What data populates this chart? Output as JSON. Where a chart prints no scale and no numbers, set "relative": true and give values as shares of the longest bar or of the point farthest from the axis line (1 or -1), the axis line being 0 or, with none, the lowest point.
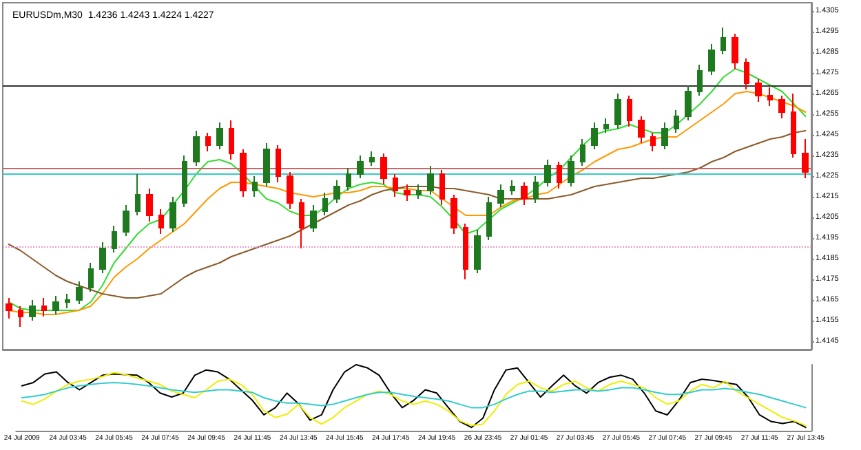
{
  "chart_data": [
    {
      "type": "candlestick",
      "title": "EURUSDm,M30  1.4236 1.4243 1.4224 1.4227",
      "tick_labels": "y",
      "categories": [
        null,
        null,
        null,
        null,
        null,
        null,
        null,
        null,
        null,
        null,
        null,
        null,
        null,
        null,
        null,
        null,
        null,
        null,
        null,
        null,
        null,
        null,
        null,
        null,
        null,
        null,
        null,
        null,
        null,
        null,
        null,
        null,
        null,
        null,
        null,
        null,
        null,
        null,
        null,
        null,
        null,
        null,
        null,
        null,
        null,
        null,
        null,
        null,
        null,
        null,
        null,
        null,
        null,
        null,
        null,
        null,
        null,
        null,
        null,
        null,
        null,
        null,
        null,
        null,
        null,
        null,
        null,
        null,
        null
      ],
      "ohlc": [
        [
          1.4163,
          1.4166,
          1.4156,
          1.416
        ],
        [
          1.416,
          1.4162,
          1.4152,
          1.4157
        ],
        [
          1.4157,
          1.4165,
          1.4155,
          1.4162
        ],
        [
          1.4162,
          1.4166,
          1.4157,
          1.416
        ],
        [
          1.416,
          1.4167,
          1.4158,
          1.4164
        ],
        [
          1.4164,
          1.4168,
          1.4161,
          1.4165
        ],
        [
          1.4165,
          1.4174,
          1.4163,
          1.4171
        ],
        [
          1.4171,
          1.4183,
          1.4169,
          1.418
        ],
        [
          1.418,
          1.4193,
          1.4178,
          1.419
        ],
        [
          1.419,
          1.4201,
          1.4188,
          1.4198
        ],
        [
          1.4198,
          1.4211,
          1.4196,
          1.4208
        ],
        [
          1.4208,
          1.4226,
          1.4206,
          1.4216
        ],
        [
          1.4216,
          1.4219,
          1.4203,
          1.4206
        ],
        [
          1.4206,
          1.4209,
          1.4197,
          1.42
        ],
        [
          1.42,
          1.4215,
          1.4198,
          1.4212
        ],
        [
          1.4212,
          1.4235,
          1.421,
          1.4232
        ],
        [
          1.4232,
          1.4247,
          1.423,
          1.4244
        ],
        [
          1.4244,
          1.4246,
          1.4237,
          1.424
        ],
        [
          1.424,
          1.4251,
          1.4238,
          1.4248
        ],
        [
          1.4248,
          1.4252,
          1.4233,
          1.4236
        ],
        [
          1.4236,
          1.4238,
          1.4215,
          1.4218
        ],
        [
          1.4218,
          1.4225,
          1.4215,
          1.4222
        ],
        [
          1.4222,
          1.4241,
          1.422,
          1.4238
        ],
        [
          1.4238,
          1.424,
          1.4222,
          1.4225
        ],
        [
          1.4225,
          1.4227,
          1.4209,
          1.4212
        ],
        [
          1.4212,
          1.4214,
          1.419,
          1.42
        ],
        [
          1.42,
          1.4211,
          1.4198,
          1.4208
        ],
        [
          1.4208,
          1.4217,
          1.4206,
          1.4214
        ],
        [
          1.4214,
          1.4223,
          1.4212,
          1.422
        ],
        [
          1.422,
          1.4229,
          1.4218,
          1.4226
        ],
        [
          1.4226,
          1.4235,
          1.4224,
          1.4232
        ],
        [
          1.4232,
          1.4237,
          1.423,
          1.4234
        ],
        [
          1.4234,
          1.4236,
          1.4221,
          1.4224
        ],
        [
          1.4224,
          1.4226,
          1.4215,
          1.4218
        ],
        [
          1.4218,
          1.4221,
          1.4213,
          1.4216
        ],
        [
          1.4216,
          1.4221,
          1.4214,
          1.4218
        ],
        [
          1.4218,
          1.423,
          1.4216,
          1.4226
        ],
        [
          1.4226,
          1.4228,
          1.4211,
          1.4214
        ],
        [
          1.4214,
          1.4216,
          1.4197,
          1.42
        ],
        [
          1.42,
          1.4202,
          1.4175,
          1.418
        ],
        [
          1.418,
          1.4199,
          1.4178,
          1.4196
        ],
        [
          1.4196,
          1.4215,
          1.4194,
          1.4212
        ],
        [
          1.4212,
          1.4221,
          1.421,
          1.4218
        ],
        [
          1.4218,
          1.4223,
          1.4216,
          1.422
        ],
        [
          1.422,
          1.4222,
          1.4211,
          1.4214
        ],
        [
          1.4214,
          1.4225,
          1.4212,
          1.4222
        ],
        [
          1.4222,
          1.4233,
          1.422,
          1.423
        ],
        [
          1.423,
          1.4232,
          1.4219,
          1.4222
        ],
        [
          1.4222,
          1.4235,
          1.422,
          1.4232
        ],
        [
          1.4232,
          1.4243,
          1.423,
          1.424
        ],
        [
          1.424,
          1.4251,
          1.4238,
          1.4248
        ],
        [
          1.4248,
          1.4253,
          1.4246,
          1.425
        ],
        [
          1.425,
          1.4265,
          1.4248,
          1.4262
        ],
        [
          1.4262,
          1.4264,
          1.4249,
          1.4252
        ],
        [
          1.4252,
          1.4254,
          1.4241,
          1.4244
        ],
        [
          1.4244,
          1.4246,
          1.4237,
          1.424
        ],
        [
          1.424,
          1.4251,
          1.4238,
          1.4248
        ],
        [
          1.4248,
          1.4257,
          1.4246,
          1.4254
        ],
        [
          1.4254,
          1.4269,
          1.4252,
          1.4266
        ],
        [
          1.4266,
          1.4279,
          1.4264,
          1.4276
        ],
        [
          1.4276,
          1.4289,
          1.4274,
          1.4286
        ],
        [
          1.4286,
          1.4297,
          1.4284,
          1.4292
        ],
        [
          1.4292,
          1.4294,
          1.4277,
          1.428
        ],
        [
          1.428,
          1.4282,
          1.4267,
          1.427
        ],
        [
          1.427,
          1.4272,
          1.4261,
          1.4264
        ],
        [
          1.4264,
          1.4268,
          1.4259,
          1.4262
        ],
        [
          1.4262,
          1.4264,
          1.4253,
          1.4256
        ],
        [
          1.4256,
          1.4265,
          1.4234,
          1.4236
        ],
        [
          1.4236,
          1.4243,
          1.4224,
          1.4227
        ]
      ],
      "series": [
        {
          "type": "line",
          "color": "#33dd33",
          "values": [
            1.4164,
            1.4161,
            1.416,
            1.416,
            1.416,
            1.416,
            1.416,
            1.4164,
            1.4172,
            1.4183,
            1.419,
            1.4197,
            1.4202,
            1.4204,
            1.4211,
            1.4218,
            1.4226,
            1.4232,
            1.4233,
            1.4231,
            1.4226,
            1.422,
            1.4214,
            1.4212,
            1.4208,
            1.4206,
            1.4206,
            1.421,
            1.4215,
            1.4219,
            1.4221,
            1.4222,
            1.4221,
            1.4217,
            1.4216,
            1.4216,
            1.4215,
            1.421,
            1.4204,
            1.4197,
            1.4199,
            1.4204,
            1.4209,
            1.4212,
            1.4215,
            1.4219,
            1.4224,
            1.4228,
            1.4234,
            1.424,
            1.4245,
            1.4247,
            1.4248,
            1.425,
            1.4248,
            1.4246,
            1.4246,
            1.425,
            1.4255,
            1.426,
            1.4266,
            1.4273,
            1.4277,
            1.4275,
            1.4272,
            1.4269,
            1.4266,
            1.426,
            1.4254
          ]
        },
        {
          "type": "line",
          "color": "#ff9900",
          "values": [
            1.416,
            1.4159,
            1.4159,
            1.4158,
            1.4158,
            1.4159,
            1.416,
            1.4162,
            1.4168,
            1.4176,
            1.4181,
            1.4185,
            1.419,
            1.4194,
            1.4198,
            1.4202,
            1.4208,
            1.4214,
            1.4219,
            1.4222,
            1.4222,
            1.4221,
            1.422,
            1.4219,
            1.4217,
            1.4216,
            1.4215,
            1.4216,
            1.4217,
            1.4217,
            1.4218,
            1.422,
            1.422,
            1.4219,
            1.4219,
            1.4218,
            1.4218,
            1.4214,
            1.421,
            1.4206,
            1.4206,
            1.4206,
            1.421,
            1.4213,
            1.4214,
            1.4216,
            1.4217,
            1.4221,
            1.4225,
            1.4228,
            1.4232,
            1.4235,
            1.4238,
            1.4239,
            1.4241,
            1.4243,
            1.4244,
            1.4244,
            1.4248,
            1.4252,
            1.4256,
            1.426,
            1.4265,
            1.4266,
            1.4265,
            1.4263,
            1.4261,
            1.4259,
            1.4256
          ]
        },
        {
          "type": "line",
          "color": "#8b5a2b",
          "values": [
            1.4192,
            1.4189,
            1.4185,
            1.4181,
            1.4177,
            1.4174,
            1.4172,
            1.417,
            1.4168,
            1.4167,
            1.4166,
            1.4166,
            1.4167,
            1.4168,
            1.4172,
            1.4176,
            1.4179,
            1.4181,
            1.4183,
            1.4186,
            1.4188,
            1.419,
            1.4192,
            1.4194,
            1.4196,
            1.4199,
            1.4202,
            1.4205,
            1.4208,
            1.4211,
            1.4213,
            1.4216,
            1.4218,
            1.4219,
            1.422,
            1.422,
            1.422,
            1.4219,
            1.4219,
            1.4218,
            1.4217,
            1.4216,
            1.4214,
            1.4214,
            1.4214,
            1.4214,
            1.4214,
            1.4215,
            1.4216,
            1.4218,
            1.422,
            1.4221,
            1.4222,
            1.4223,
            1.4224,
            1.4224,
            1.4225,
            1.4226,
            1.4227,
            1.4229,
            1.4232,
            1.4234,
            1.4237,
            1.4239,
            1.4241,
            1.4243,
            1.4244,
            1.4246,
            1.4247
          ]
        }
      ],
      "ref_lines": [
        {
          "axis": "y",
          "value": 1.4269,
          "color": "#333333",
          "line_style": "solid"
        },
        {
          "axis": "y",
          "value": 1.4229,
          "color": "#cc6666",
          "line_style": "solid"
        },
        {
          "axis": "y",
          "value": 1.4226,
          "color": "#33cccc",
          "line_style": "solid"
        },
        {
          "axis": "y",
          "value": 1.4191,
          "color": "#ee99cc",
          "line_style": "dotted"
        }
      ],
      "ylim": [
        1.4141,
        1.4309
      ],
      "yticks": [
        1.4145,
        1.4155,
        1.4165,
        1.4175,
        1.4185,
        1.4195,
        1.4205,
        1.4215,
        1.4225,
        1.4235,
        1.4245,
        1.4255,
        1.4265,
        1.4275,
        1.4285,
        1.4295,
        1.4305
      ]
    },
    {
      "type": "line",
      "tick_labels": "x",
      "relative": true,
      "categories": [
        "24 Jul 2009",
        null,
        null,
        null,
        "24 Jul 03:45",
        null,
        null,
        null,
        "24 Jul 05:45",
        null,
        null,
        null,
        "24 Jul 07:45",
        null,
        null,
        null,
        "24 Jul 09:45",
        null,
        null,
        null,
        "24 Jul 11:45",
        null,
        null,
        null,
        "24 Jul 13:45",
        null,
        null,
        null,
        "24 Jul 15:45",
        null,
        null,
        null,
        "24 Jul 17:45",
        null,
        null,
        null,
        "24 Jul 19:45",
        null,
        null,
        null,
        "26 Jul 23:45",
        null,
        null,
        null,
        "27 Jul 01:45",
        null,
        null,
        null,
        "27 Jul 03:45",
        null,
        null,
        null,
        "27 Jul 05:45",
        null,
        null,
        null,
        "27 Jul 07:45",
        null,
        null,
        null,
        "27 Jul 09:45",
        null,
        null,
        null,
        "27 Jul 11:45",
        null,
        null,
        null,
        "27 Jul 13:45"
      ],
      "series": [
        {
          "color": "#000000",
          "values": [
            0.68,
            0.73,
            0.86,
            0.89,
            0.73,
            0.62,
            0.73,
            0.84,
            0.86,
            0.85,
            0.84,
            0.73,
            0.57,
            0.51,
            0.57,
            0.84,
            0.92,
            0.89,
            0.78,
            0.62,
            0.46,
            0.24,
            0.35,
            0.57,
            0.41,
            0.16,
            0.24,
            0.62,
            0.89,
            1,
            0.95,
            0.84,
            0.57,
            0.35,
            0.46,
            0.62,
            0.57,
            0.35,
            0.14,
            0.05,
            0.19,
            0.62,
            0.92,
            0.95,
            0.73,
            0.51,
            0.68,
            0.84,
            0.68,
            0.57,
            0.73,
            0.81,
            0.84,
            0.78,
            0.57,
            0.3,
            0.24,
            0.46,
            0.73,
            0.78,
            0.76,
            0.73,
            0.7,
            0.51,
            0.24,
            0.14,
            0.11,
            0.14,
            0.05
          ]
        },
        {
          "color": "#eeee00",
          "values": [
            0.45,
            0.4,
            0.48,
            0.6,
            0.7,
            0.75,
            0.78,
            0.82,
            0.88,
            0.85,
            0.8,
            0.75,
            0.7,
            0.6,
            0.55,
            0.5,
            0.62,
            0.75,
            0.78,
            0.7,
            0.55,
            0.3,
            0.2,
            0.25,
            0.4,
            0.2,
            0.1,
            0.2,
            0.35,
            0.45,
            0.55,
            0.6,
            0.55,
            0.45,
            0.4,
            0.45,
            0.4,
            0.3,
            0.15,
            0.08,
            0.1,
            0.3,
            0.55,
            0.7,
            0.75,
            0.65,
            0.6,
            0.7,
            0.75,
            0.65,
            0.6,
            0.7,
            0.75,
            0.7,
            0.65,
            0.5,
            0.4,
            0.45,
            0.6,
            0.7,
            0.65,
            0.75,
            0.6,
            0.5,
            0.4,
            0.3,
            0.2,
            0.15,
            0.08
          ]
        },
        {
          "color": "#33cccc",
          "values": [
            0.5,
            0.52,
            0.55,
            0.6,
            0.65,
            0.68,
            0.7,
            0.72,
            0.73,
            0.72,
            0.7,
            0.68,
            0.65,
            0.62,
            0.6,
            0.58,
            0.6,
            0.62,
            0.62,
            0.6,
            0.58,
            0.5,
            0.45,
            0.42,
            0.42,
            0.4,
            0.38,
            0.4,
            0.45,
            0.5,
            0.55,
            0.58,
            0.58,
            0.55,
            0.52,
            0.5,
            0.48,
            0.45,
            0.4,
            0.35,
            0.35,
            0.4,
            0.48,
            0.55,
            0.6,
            0.6,
            0.58,
            0.6,
            0.62,
            0.62,
            0.6,
            0.62,
            0.65,
            0.65,
            0.62,
            0.58,
            0.55,
            0.55,
            0.58,
            0.62,
            0.62,
            0.64,
            0.62,
            0.58,
            0.55,
            0.5,
            0.45,
            0.4,
            0.35
          ]
        }
      ]
    }
  ]
}
